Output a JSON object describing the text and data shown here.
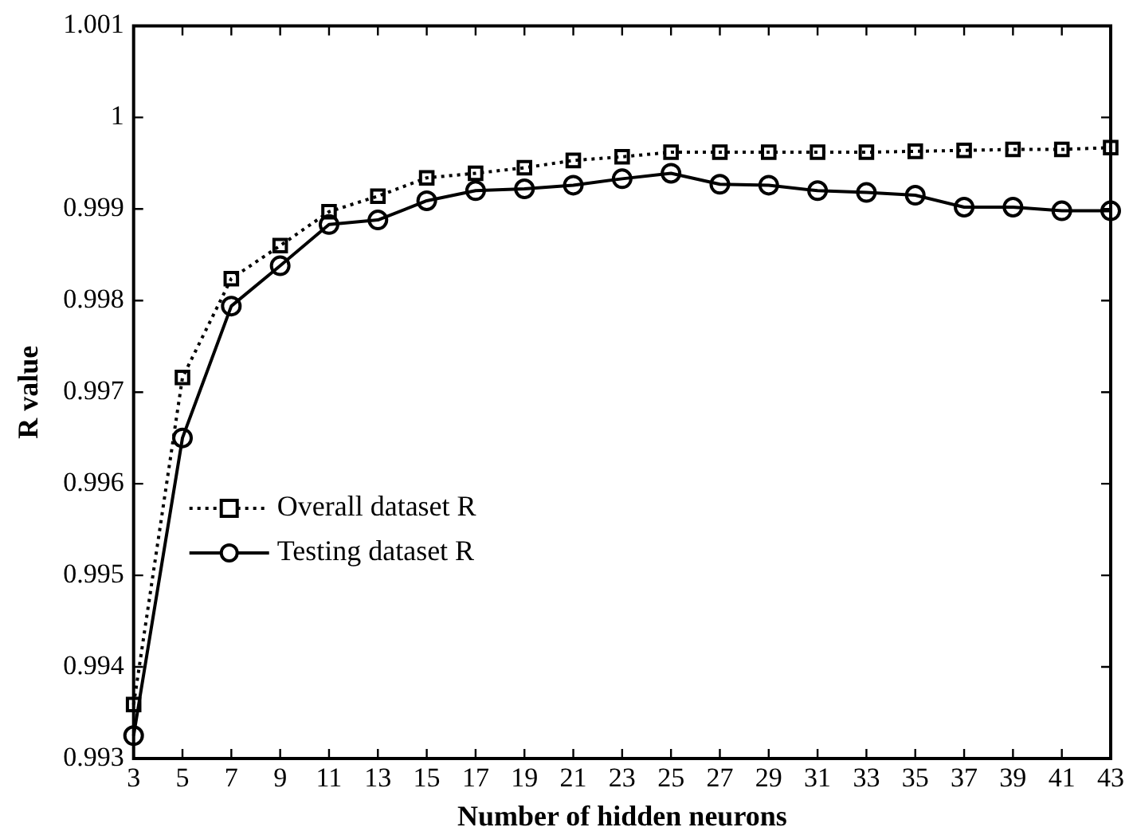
{
  "chart_data": {
    "type": "line",
    "xlabel": "Number of hidden neurons",
    "ylabel": "R value",
    "x": [
      3,
      5,
      7,
      9,
      11,
      13,
      15,
      17,
      19,
      21,
      23,
      25,
      27,
      29,
      31,
      33,
      35,
      37,
      39,
      41,
      43
    ],
    "xlim": [
      3,
      43
    ],
    "xticks": [
      3,
      5,
      7,
      9,
      11,
      13,
      15,
      17,
      19,
      21,
      23,
      25,
      27,
      29,
      31,
      33,
      35,
      37,
      39,
      41,
      43
    ],
    "ylim": [
      0.993,
      1.001
    ],
    "yticks": [
      0.993,
      0.994,
      0.995,
      0.996,
      0.997,
      0.998,
      0.999,
      1,
      1.001
    ],
    "grid": false,
    "legend": "bottom left",
    "series": [
      {
        "name": "Overall dataset R",
        "color": "#000000",
        "marker": "square",
        "line_style": "dotted",
        "values": [
          0.99359,
          0.99716,
          0.99824,
          0.9986,
          0.99897,
          0.99914,
          0.99934,
          0.99939,
          0.99945,
          0.99953,
          0.99957,
          0.99962,
          0.99962,
          0.99962,
          0.99962,
          0.99962,
          0.99963,
          0.99964,
          0.99965,
          0.99965,
          0.99967
        ]
      },
      {
        "name": "Testing dataset R",
        "color": "#000000",
        "marker": "circle",
        "line_style": "solid",
        "values": [
          0.99325,
          0.9965,
          0.99794,
          0.99838,
          0.99883,
          0.99888,
          0.99909,
          0.9992,
          0.99922,
          0.99926,
          0.99933,
          0.99939,
          0.99927,
          0.99926,
          0.9992,
          0.99918,
          0.99915,
          0.99902,
          0.99902,
          0.99898,
          0.99898
        ]
      }
    ]
  }
}
